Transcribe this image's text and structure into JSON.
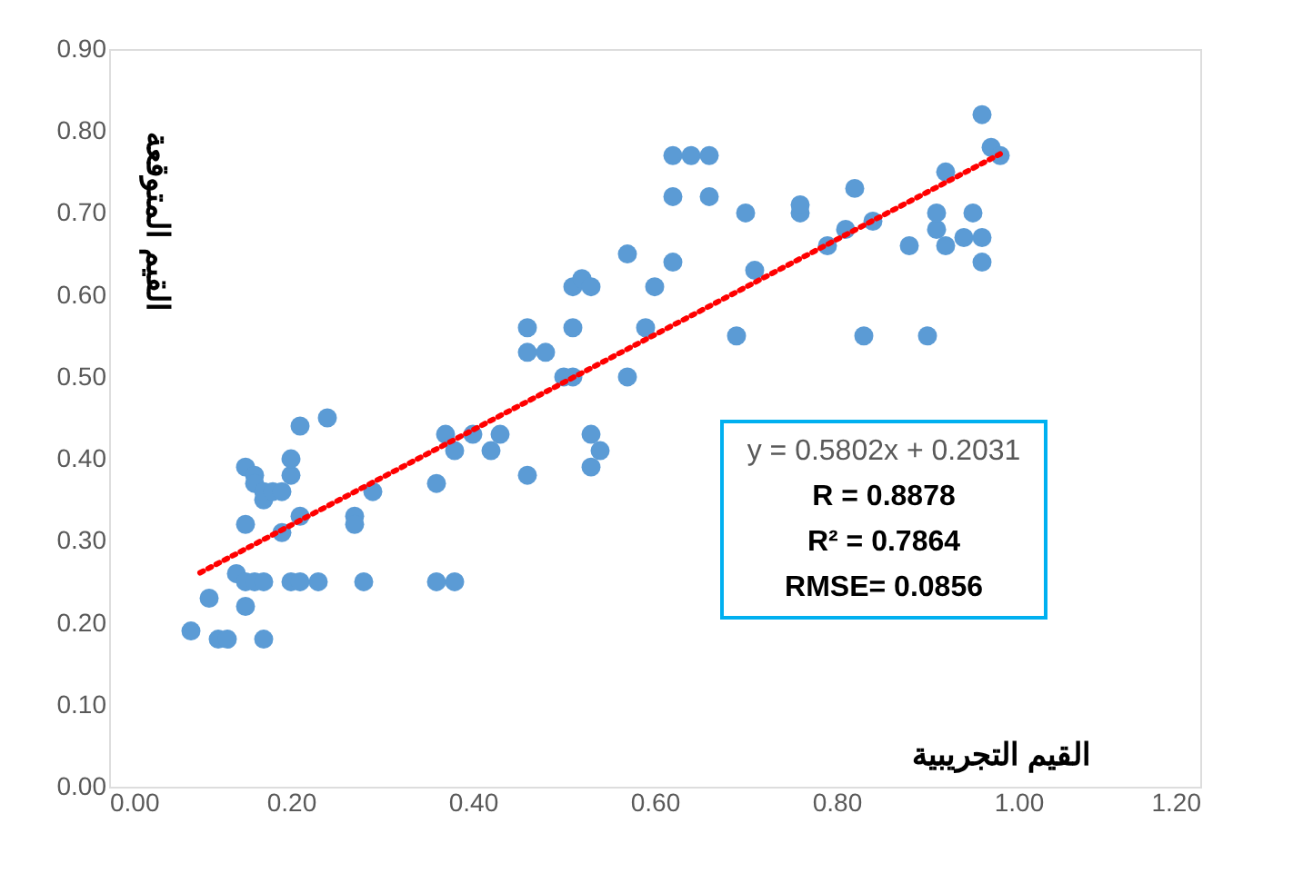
{
  "chart_data": {
    "type": "scatter",
    "xlabel": "القيم التجريبية",
    "ylabel": "القيم المتوقعة",
    "xlim": [
      0,
      1.2
    ],
    "xticks": [
      {
        "value": 0,
        "label": "0.00"
      },
      {
        "value": 0.2,
        "label": "0.20"
      },
      {
        "value": 0.4,
        "label": "0.40"
      },
      {
        "value": 0.6,
        "label": "0.60"
      },
      {
        "value": 0.8,
        "label": "0.80"
      },
      {
        "value": 1.0,
        "label": "1.00"
      },
      {
        "value": 1.2,
        "label": "1.20"
      }
    ],
    "ylim": [
      0,
      0.9
    ],
    "yticks": [
      {
        "value": 0,
        "label": "0.00"
      },
      {
        "value": 0.1,
        "label": "0.10"
      },
      {
        "value": 0.2,
        "label": "0.20"
      },
      {
        "value": 0.3,
        "label": "0.30"
      },
      {
        "value": 0.4,
        "label": "0.40"
      },
      {
        "value": 0.5,
        "label": "0.50"
      },
      {
        "value": 0.6,
        "label": "0.60"
      },
      {
        "value": 0.7,
        "label": "0.70"
      },
      {
        "value": 0.8,
        "label": "0.80"
      },
      {
        "value": 0.9,
        "label": "0.90"
      }
    ],
    "grid": false,
    "series": [
      {
        "color": "#5b9bd5",
        "marker": "circle",
        "x": [
          0.09,
          0.11,
          0.12,
          0.13,
          0.14,
          0.15,
          0.16,
          0.16,
          0.17,
          0.17,
          0.18,
          0.19,
          0.19,
          0.2,
          0.2,
          0.21,
          0.15,
          0.15,
          0.16,
          0.17,
          0.17,
          0.2,
          0.21,
          0.23,
          0.15,
          0.21,
          0.24,
          0.27,
          0.27,
          0.29,
          0.28,
          0.36,
          0.36,
          0.38,
          0.37,
          0.38,
          0.4,
          0.42,
          0.43,
          0.46,
          0.46,
          0.46,
          0.48,
          0.5,
          0.51,
          0.51,
          0.51,
          0.52,
          0.53,
          0.53,
          0.54,
          0.53,
          0.57,
          0.57,
          0.59,
          0.6,
          0.62,
          0.62,
          0.62,
          0.64,
          0.66,
          0.66,
          0.69,
          0.7,
          0.71,
          0.76,
          0.76,
          0.79,
          0.81,
          0.82,
          0.83,
          0.84,
          0.88,
          0.9,
          0.91,
          0.91,
          0.92,
          0.92,
          0.94,
          0.95,
          0.96,
          0.96,
          0.96,
          0.97,
          0.98
        ],
        "values": [
          0.19,
          0.23,
          0.18,
          0.18,
          0.26,
          0.39,
          0.38,
          0.37,
          0.35,
          0.36,
          0.36,
          0.36,
          0.31,
          0.38,
          0.4,
          0.44,
          0.25,
          0.22,
          0.25,
          0.25,
          0.18,
          0.25,
          0.25,
          0.25,
          0.32,
          0.33,
          0.45,
          0.33,
          0.32,
          0.36,
          0.25,
          0.37,
          0.25,
          0.25,
          0.43,
          0.41,
          0.43,
          0.41,
          0.43,
          0.38,
          0.56,
          0.53,
          0.53,
          0.5,
          0.5,
          0.56,
          0.61,
          0.62,
          0.61,
          0.43,
          0.41,
          0.39,
          0.65,
          0.5,
          0.56,
          0.61,
          0.77,
          0.72,
          0.64,
          0.77,
          0.77,
          0.72,
          0.55,
          0.7,
          0.63,
          0.7,
          0.71,
          0.66,
          0.68,
          0.73,
          0.55,
          0.69,
          0.66,
          0.55,
          0.68,
          0.7,
          0.75,
          0.66,
          0.67,
          0.7,
          0.64,
          0.67,
          0.82,
          0.78,
          0.77
        ]
      },
      {
        "type": "line",
        "color": "#ff0000",
        "line_style": "dotted",
        "marker": "none",
        "x": [
          0.1,
          0.98
        ],
        "values": [
          0.261,
          0.772
        ]
      }
    ],
    "annotations": [
      "y = 0.5802x + 0.2031",
      "R = 0.8878",
      "R² = 0.7864",
      "RMSE= 0.0856"
    ]
  }
}
